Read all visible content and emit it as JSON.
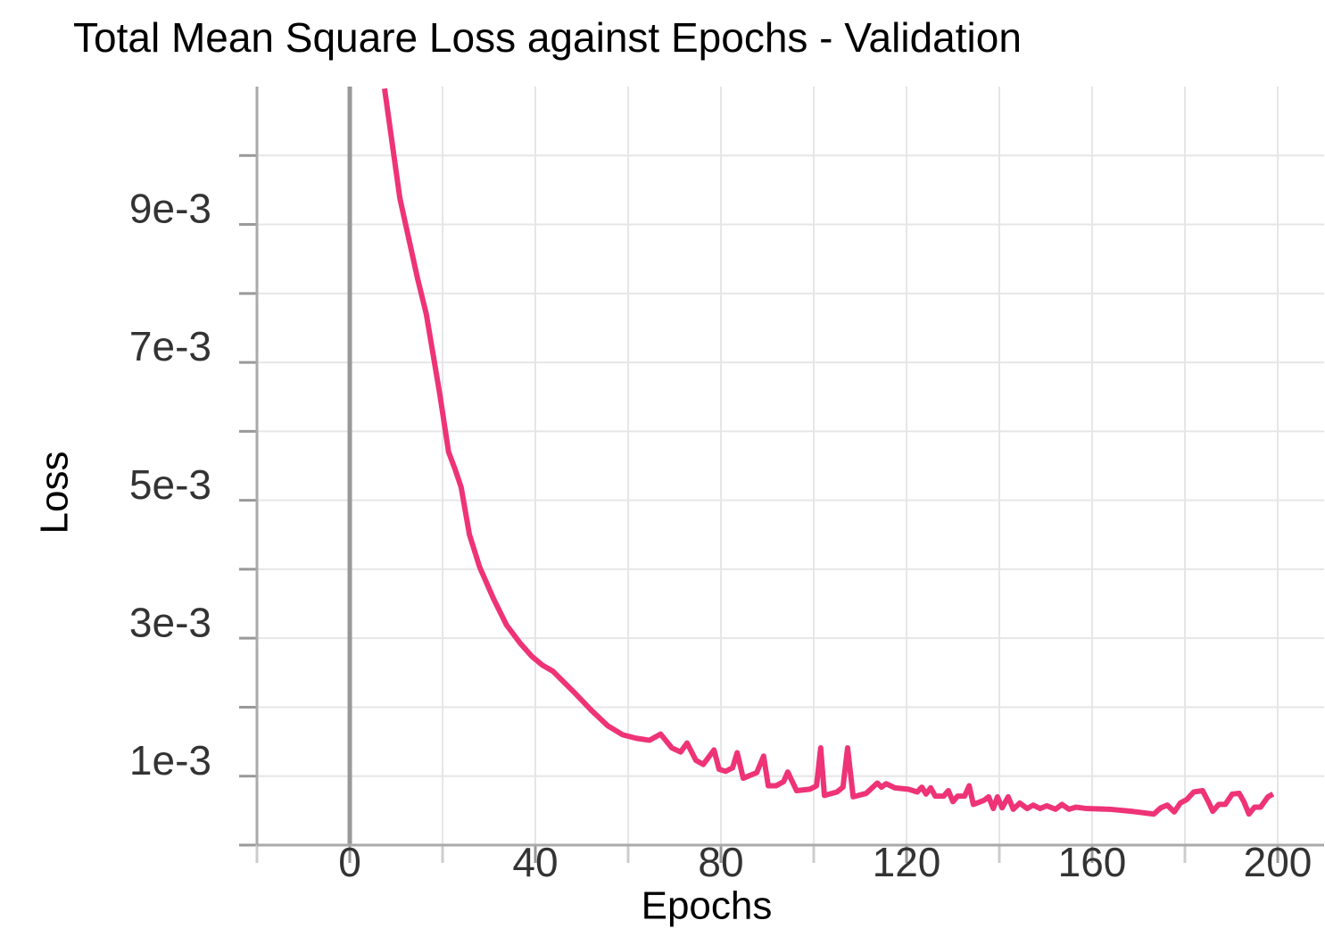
{
  "chart_data": {
    "type": "line",
    "title": "Total Mean Square Loss against Epochs - Validation",
    "x_label": "Epochs",
    "y_label": "Loss",
    "xlim": [
      -20,
      210
    ],
    "ylim": [
      0,
      0.011
    ],
    "xticks": [
      0,
      40,
      80,
      120,
      160,
      200
    ],
    "xminorticks": [
      -20,
      20,
      60,
      100,
      140,
      180
    ],
    "yticks": [
      {
        "value": 0.001,
        "label": "1e-3"
      },
      {
        "value": 0.003,
        "label": "3e-3"
      },
      {
        "value": 0.005,
        "label": "5e-3"
      },
      {
        "value": 0.007,
        "label": "7e-3"
      },
      {
        "value": 0.009,
        "label": "9e-3"
      }
    ],
    "yminorticks": [
      0,
      0.002,
      0.004,
      0.006,
      0.008,
      0.01
    ],
    "grid": true,
    "series": [
      {
        "color": "#ee3377",
        "x": [
          7.5,
          10.8,
          14.6,
          16.5,
          19.4,
          21.3,
          22.7,
          24,
          25.8,
          28,
          31,
          33.8,
          36.7,
          39.2,
          41.5,
          43.8,
          48.3,
          52,
          55.6,
          58.8,
          61.7,
          64.6,
          67,
          69.4,
          71.3,
          72.7,
          74.6,
          76.2,
          78.5,
          79.6,
          81,
          82.5,
          83.5,
          84.8,
          87.7,
          89.2,
          90.2,
          91.9,
          93.5,
          94.4,
          96.3,
          99.2,
          100.6,
          101.5,
          102.3,
          105,
          106.3,
          107.3,
          108.5,
          111.3,
          113.7,
          114.6,
          115.6,
          117.5,
          120.4,
          122.3,
          123.3,
          124.2,
          125.2,
          126.2,
          128,
          129,
          130,
          131,
          132.5,
          133.5,
          134.4,
          136.7,
          137.7,
          138.7,
          139.6,
          140.6,
          141.9,
          143,
          144.4,
          146,
          147.3,
          148.8,
          150.2,
          152.1,
          153.5,
          155,
          156.5,
          158.8,
          163.7,
          168.5,
          173.3,
          174.8,
          176.2,
          177.7,
          179,
          180.4,
          181.9,
          183.8,
          185.2,
          186,
          187.3,
          188.7,
          190.2,
          191.7,
          192.7,
          193.8,
          195,
          196.3,
          197.9,
          199
        ],
        "values": [
          0.01097,
          0.00938,
          0.00822,
          0.0077,
          0.00654,
          0.0057,
          0.00545,
          0.00519,
          0.0045,
          0.00403,
          0.00357,
          0.00319,
          0.00293,
          0.00274,
          0.00261,
          0.00252,
          0.00222,
          0.00196,
          0.00173,
          0.0016,
          0.00155,
          0.00152,
          0.00161,
          0.00141,
          0.00135,
          0.00148,
          0.00123,
          0.00117,
          0.00138,
          0.0011,
          0.00107,
          0.00112,
          0.00134,
          0.00097,
          0.00105,
          0.00129,
          0.00086,
          0.00086,
          0.00092,
          0.00106,
          0.00079,
          0.00081,
          0.00086,
          0.00141,
          0.00072,
          0.00077,
          0.00084,
          0.00141,
          0.0007,
          0.00075,
          0.0009,
          0.00084,
          0.00089,
          0.00083,
          0.00081,
          0.00077,
          0.00084,
          0.00074,
          0.00083,
          0.00071,
          0.00071,
          0.00079,
          0.00063,
          0.00071,
          0.00071,
          0.00086,
          0.00059,
          0.00065,
          0.0007,
          0.00053,
          0.0007,
          0.00054,
          0.0007,
          0.00052,
          0.00061,
          0.00053,
          0.00058,
          0.00053,
          0.00057,
          0.00052,
          0.00059,
          0.00052,
          0.00055,
          0.00053,
          0.00052,
          0.00049,
          0.00045,
          0.00054,
          0.00058,
          0.00048,
          0.00061,
          0.00066,
          0.00077,
          0.00079,
          0.00061,
          0.00049,
          0.00059,
          0.00059,
          0.00074,
          0.00075,
          0.00063,
          0.00045,
          0.00055,
          0.00055,
          0.0007,
          0.00074
        ]
      }
    ]
  }
}
